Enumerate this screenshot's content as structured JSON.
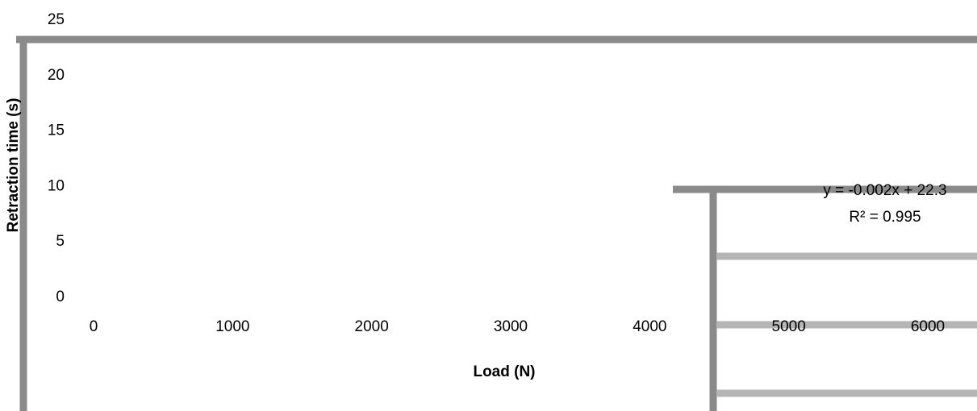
{
  "chart_data": {
    "type": "scatter",
    "xlabel": "Load (N)",
    "ylabel": "Retraction time (s)",
    "xlim": [
      0,
      6000
    ],
    "ylim": [
      0,
      25
    ],
    "x_ticks": [
      "0",
      "1000",
      "2000",
      "3000",
      "4000",
      "5000",
      "6000"
    ],
    "y_ticks": [
      "0",
      "5",
      "10",
      "15",
      "20",
      "25"
    ],
    "trendline": {
      "type": "linear",
      "slope": -0.002,
      "intercept": 22.3,
      "equation": "y = -0.002x + 22.3",
      "r_squared": "R² = 0.995"
    },
    "grid": false,
    "legend": "none"
  },
  "colors": {
    "axis_frame": "#8a8a8a",
    "gridline": "#b5b5b5",
    "text": "#000000"
  }
}
